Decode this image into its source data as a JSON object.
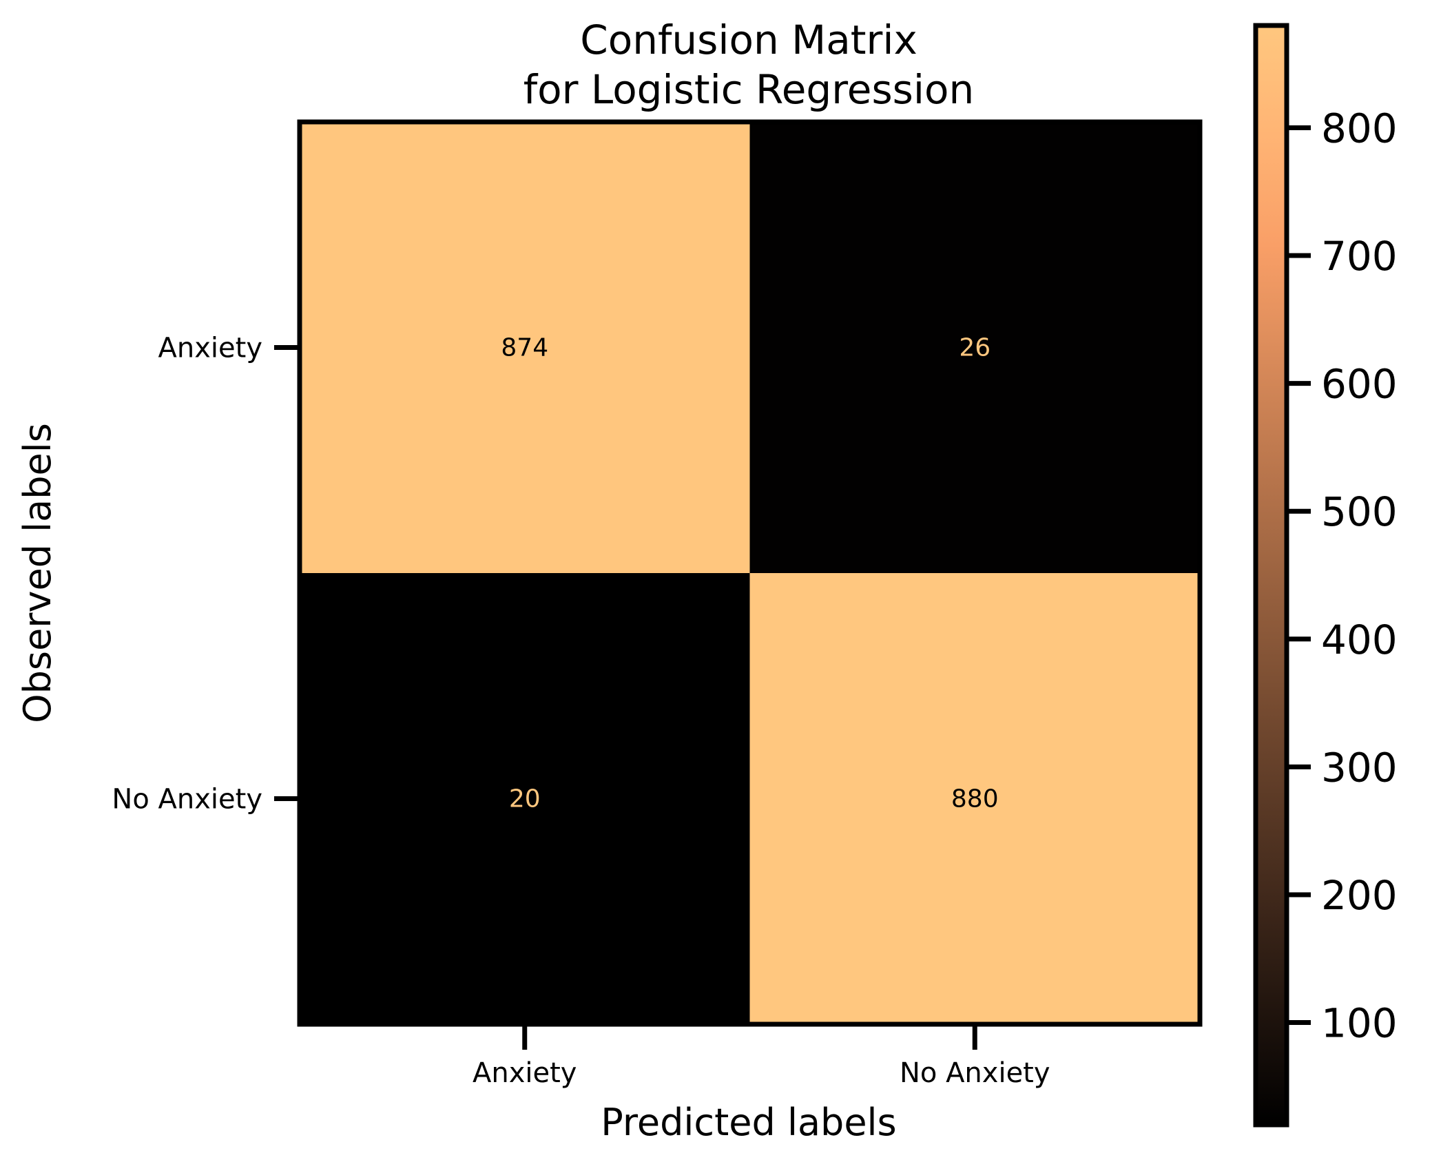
{
  "chart_data": {
    "type": "heatmap",
    "title": "Confusion Matrix\nfor Logistic Regression",
    "title_lines": [
      "Confusion Matrix",
      "for Logistic Regression"
    ],
    "xlabel": "Predicted labels",
    "ylabel": "Observed labels",
    "x_categories": [
      "Anxiety",
      "No Anxiety"
    ],
    "y_categories": [
      "Anxiety",
      "No Anxiety"
    ],
    "matrix": [
      [
        874,
        26
      ],
      [
        20,
        880
      ]
    ],
    "colormap": "copper",
    "colorbar": {
      "vmin": 20,
      "vmax": 880,
      "ticks": [
        100,
        200,
        300,
        400,
        500,
        600,
        700,
        800
      ],
      "tick_labels": [
        "100",
        "200",
        "300",
        "400",
        "500",
        "600",
        "700",
        "800"
      ]
    },
    "colors": {
      "low": "#000000",
      "high": "#ffc77f",
      "text_on_dark": "#ffc77f",
      "text_on_light": "#000000"
    }
  }
}
